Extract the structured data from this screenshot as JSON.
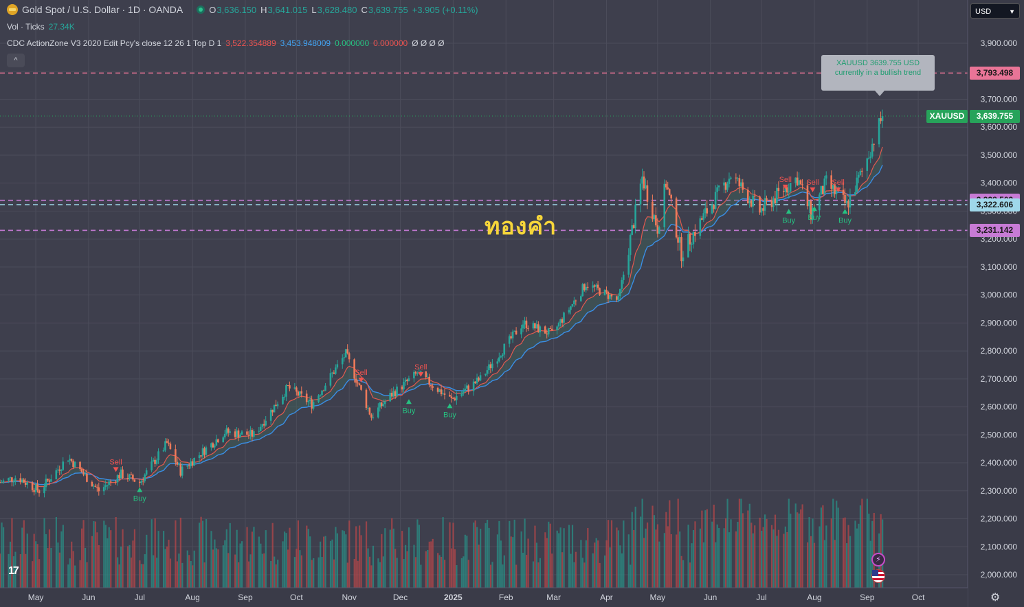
{
  "header": {
    "symbol_title": "Gold Spot / U.S. Dollar · 1D · OANDA",
    "ohlc": [
      {
        "key": "O",
        "value": "3,636.150"
      },
      {
        "key": "H",
        "value": "3,641.015"
      },
      {
        "key": "L",
        "value": "3,628.480"
      },
      {
        "key": "C",
        "value": "3,639.755"
      }
    ],
    "change": "+3.905 (+0.11%)",
    "volume_label": "Vol · Ticks",
    "volume_value": "27.34K",
    "indicator_label": "CDC ActionZone V3 2020 Edit Pcy's close 12 26 1 Top D 1",
    "indicator_values": [
      "3,522.354889",
      "3,453.948009",
      "0.000000",
      "0.000000"
    ],
    "indicator_extra": "Ø Ø Ø Ø",
    "collapse_glyph": "^"
  },
  "currency_selector": "USD",
  "tooltip": {
    "line1": "XAUUSD 3639.755 USD",
    "line2": "currently in a bullish trend"
  },
  "overlay_text": "ทองคำ",
  "symbol_tag": "XAUUSD",
  "colors": {
    "background": "#3e3f4d",
    "up": "#26a69a",
    "down": "#ef5350",
    "fast_ema": "#ef5350",
    "slow_ema": "#2962ff",
    "line_pink": "#e97497",
    "line_violet": "#c77bd5",
    "line_cyan": "#9fd8ea",
    "overlay_text": "#f5d53a"
  },
  "chart_data": {
    "type": "candlestick",
    "title": "Gold Spot / U.S. Dollar · 1D · OANDA",
    "ylim": [
      1950,
      4000
    ],
    "y_ticks": [
      2000,
      2100,
      2200,
      2300,
      2400,
      2500,
      2600,
      2700,
      2800,
      2900,
      3000,
      3100,
      3200,
      3300,
      3400,
      3500,
      3600,
      3700,
      3800,
      3900
    ],
    "y_tick_labels": [
      "2,000.000",
      "2,100.000",
      "2,200.000",
      "2,300.000",
      "2,400.000",
      "2,500.000",
      "2,600.000",
      "2,700.000",
      "2,800.000",
      "2,900.000",
      "3,000.000",
      "3,100.000",
      "3,200.000",
      "3,300.000",
      "3,400.000",
      "3,500.000",
      "3,600.000",
      "3,700.000",
      "3,800.000",
      "3,900.000"
    ],
    "x_labels": [
      {
        "date": "2024-05-01",
        "label": "May"
      },
      {
        "date": "2024-06-01",
        "label": "Jun"
      },
      {
        "date": "2024-07-01",
        "label": "Jul"
      },
      {
        "date": "2024-08-01",
        "label": "Aug"
      },
      {
        "date": "2024-09-01",
        "label": "Sep"
      },
      {
        "date": "2024-10-01",
        "label": "Oct"
      },
      {
        "date": "2024-11-01",
        "label": "Nov"
      },
      {
        "date": "2024-12-01",
        "label": "Dec"
      },
      {
        "date": "2025-01-01",
        "label": "2025"
      },
      {
        "date": "2025-02-01",
        "label": "Feb"
      },
      {
        "date": "2025-03-01",
        "label": "Mar"
      },
      {
        "date": "2025-04-01",
        "label": "Apr"
      },
      {
        "date": "2025-05-01",
        "label": "May"
      },
      {
        "date": "2025-06-01",
        "label": "Jun"
      },
      {
        "date": "2025-07-01",
        "label": "Jul"
      },
      {
        "date": "2025-08-01",
        "label": "Aug"
      },
      {
        "date": "2025-09-01",
        "label": "Sep"
      },
      {
        "date": "2025-10-01",
        "label": "Oct"
      }
    ],
    "x_range": [
      "2024-04-10",
      "2025-10-30"
    ],
    "close_path": [
      [
        "2024-04-10",
        2330
      ],
      [
        "2024-04-20",
        2350
      ],
      [
        "2024-05-03",
        2300
      ],
      [
        "2024-05-20",
        2420
      ],
      [
        "2024-06-07",
        2300
      ],
      [
        "2024-06-20",
        2360
      ],
      [
        "2024-07-01",
        2330
      ],
      [
        "2024-07-17",
        2470
      ],
      [
        "2024-07-25",
        2370
      ],
      [
        "2024-08-20",
        2510
      ],
      [
        "2024-09-06",
        2500
      ],
      [
        "2024-09-26",
        2670
      ],
      [
        "2024-10-10",
        2610
      ],
      [
        "2024-10-30",
        2790
      ],
      [
        "2024-11-14",
        2565
      ],
      [
        "2024-11-25",
        2640
      ],
      [
        "2024-12-11",
        2720
      ],
      [
        "2024-12-31",
        2625
      ],
      [
        "2025-01-17",
        2700
      ],
      [
        "2025-02-11",
        2900
      ],
      [
        "2025-02-28",
        2860
      ],
      [
        "2025-03-20",
        3040
      ],
      [
        "2025-04-08",
        2980
      ],
      [
        "2025-04-22",
        3420
      ],
      [
        "2025-05-01",
        3240
      ],
      [
        "2025-05-06",
        3400
      ],
      [
        "2025-05-15",
        3150
      ],
      [
        "2025-05-30",
        3300
      ],
      [
        "2025-06-13",
        3430
      ],
      [
        "2025-06-30",
        3300
      ],
      [
        "2025-07-22",
        3420
      ],
      [
        "2025-07-30",
        3290
      ],
      [
        "2025-08-08",
        3400
      ],
      [
        "2025-08-20",
        3320
      ],
      [
        "2025-08-29",
        3440
      ],
      [
        "2025-09-10",
        3640
      ]
    ],
    "last_price": 3639.755,
    "last_price_label": "3,639.755",
    "horizontal_lines": [
      {
        "price": 3793.498,
        "label": "3,793.498",
        "color": "#e97497"
      },
      {
        "price": 3338.503,
        "label": "3,338.503",
        "color": "#c77bd5"
      },
      {
        "price": 3322.606,
        "label": "3,322.606",
        "color": "#9fd8ea"
      },
      {
        "price": 3231.142,
        "label": "3,231.142",
        "color": "#c77bd5"
      }
    ],
    "signals": [
      {
        "date": "2024-06-17",
        "type": "Sell",
        "price": 2360
      },
      {
        "date": "2024-07-01",
        "type": "Buy",
        "price": 2325
      },
      {
        "date": "2024-11-08",
        "type": "Sell",
        "price": 2680
      },
      {
        "date": "2024-12-06",
        "type": "Buy",
        "price": 2640
      },
      {
        "date": "2024-12-13",
        "type": "Sell",
        "price": 2700
      },
      {
        "date": "2024-12-30",
        "type": "Buy",
        "price": 2625
      },
      {
        "date": "2025-07-15",
        "type": "Sell",
        "price": 3370
      },
      {
        "date": "2025-07-17",
        "type": "Buy",
        "price": 3320
      },
      {
        "date": "2025-07-31",
        "type": "Sell",
        "price": 3360
      },
      {
        "date": "2025-08-01",
        "type": "Buy",
        "price": 3330
      },
      {
        "date": "2025-08-15",
        "type": "Sell",
        "price": 3360
      },
      {
        "date": "2025-08-19",
        "type": "Buy",
        "price": 3320
      }
    ]
  }
}
